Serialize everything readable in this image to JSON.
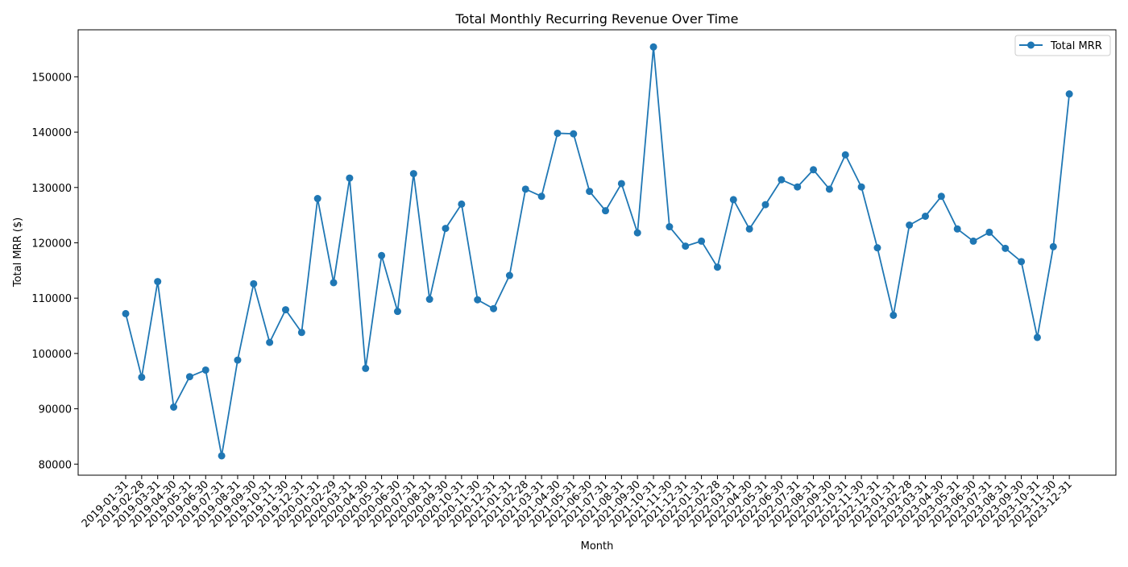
{
  "chart_data": {
    "type": "line",
    "title": "Total Monthly Recurring Revenue Over Time",
    "xlabel": "Month",
    "ylabel": "Total MRR ($)",
    "categories": [
      "2019-01-31",
      "2019-02-28",
      "2019-03-31",
      "2019-04-30",
      "2019-05-31",
      "2019-06-30",
      "2019-07-31",
      "2019-08-31",
      "2019-09-30",
      "2019-10-31",
      "2019-11-30",
      "2019-12-31",
      "2020-01-31",
      "2020-02-29",
      "2020-03-31",
      "2020-04-30",
      "2020-05-31",
      "2020-06-30",
      "2020-07-31",
      "2020-08-31",
      "2020-09-30",
      "2020-10-31",
      "2020-11-30",
      "2020-12-31",
      "2021-01-31",
      "2021-02-28",
      "2021-03-31",
      "2021-04-30",
      "2021-05-31",
      "2021-06-30",
      "2021-07-31",
      "2021-08-31",
      "2021-09-30",
      "2021-10-31",
      "2021-11-30",
      "2021-12-31",
      "2022-01-31",
      "2022-02-28",
      "2022-03-31",
      "2022-04-30",
      "2022-05-31",
      "2022-06-30",
      "2022-07-31",
      "2022-08-31",
      "2022-09-30",
      "2022-10-31",
      "2022-11-30",
      "2022-12-31",
      "2023-01-31",
      "2023-02-28",
      "2023-03-31",
      "2023-04-30",
      "2023-05-31",
      "2023-06-30",
      "2023-07-31",
      "2023-08-31",
      "2023-09-30",
      "2023-10-31",
      "2023-11-30",
      "2023-12-31"
    ],
    "series": [
      {
        "name": "Total MRR",
        "color": "#1f77b4",
        "values": [
          107200,
          95700,
          113000,
          90300,
          95800,
          97000,
          81500,
          98800,
          112600,
          102000,
          107900,
          103800,
          128000,
          112800,
          131700,
          97300,
          117700,
          107600,
          132500,
          109800,
          122600,
          127000,
          109700,
          108100,
          114100,
          129700,
          128400,
          139800,
          139700,
          129300,
          125800,
          130700,
          121800,
          155400,
          122900,
          119400,
          120300,
          115600,
          127800,
          122500,
          126900,
          131400,
          130100,
          133200,
          129700,
          135900,
          130100,
          119100,
          106900,
          123200,
          124800,
          128400,
          122500,
          120300,
          121900,
          119000,
          116600,
          102900,
          119300,
          146900
        ]
      }
    ],
    "yticks": [
      80000,
      90000,
      100000,
      110000,
      120000,
      130000,
      140000,
      150000
    ],
    "ylim": [
      78000,
      158500
    ],
    "grid": false,
    "legend": "top-right"
  }
}
